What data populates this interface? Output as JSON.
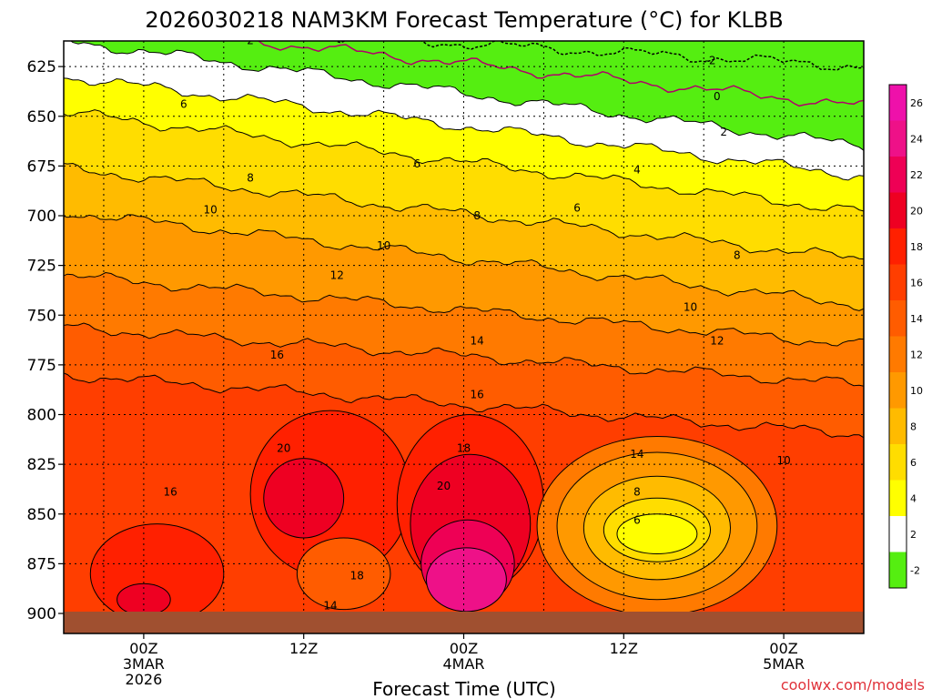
{
  "chart_data": {
    "type": "heatmap",
    "title": "2026030218 NAM3KM Forecast Temperature (°C) for KLBB",
    "xlabel": "Forecast Time (UTC)",
    "ylabel": "",
    "credit": "coolwx.com/models",
    "x_hours_range": [
      -6,
      54
    ],
    "ylim": [
      900,
      600
    ],
    "y_ticks": [
      625,
      650,
      675,
      700,
      725,
      750,
      775,
      800,
      825,
      850,
      875,
      900
    ],
    "x_ticks": [
      {
        "hour": 0,
        "label": "00Z",
        "date": "3MAR",
        "year": "2026"
      },
      {
        "hour": 12,
        "label": "12Z",
        "date": "",
        "year": ""
      },
      {
        "hour": 24,
        "label": "00Z",
        "date": "4MAR",
        "year": ""
      },
      {
        "hour": 36,
        "label": "12Z",
        "date": "",
        "year": ""
      },
      {
        "hour": 48,
        "label": "00Z",
        "date": "5MAR",
        "year": ""
      }
    ],
    "grid": true,
    "colorbar": {
      "levels": [
        -2,
        2,
        4,
        6,
        8,
        10,
        12,
        14,
        16,
        18,
        20,
        22,
        24,
        26
      ],
      "tick_labels": [
        "-2",
        "2",
        "4",
        "6",
        "8",
        "10",
        "12",
        "14",
        "16",
        "18",
        "20",
        "22",
        "24",
        "26"
      ],
      "colors": [
        "#55ee11",
        "#ffffff",
        "#ffff00",
        "#ffdd00",
        "#ffbb00",
        "#ff9900",
        "#ff7a00",
        "#ff5c00",
        "#ff3e00",
        "#ff2000",
        "#ee0022",
        "#ee0055",
        "#ee1188",
        "#ee11aa"
      ]
    },
    "isotherms": [
      {
        "value": -2,
        "p_left": 602,
        "p_right": 625
      },
      {
        "value": 0,
        "p_left": 602,
        "p_right": 645
      },
      {
        "value": 2,
        "p_left": 612,
        "p_right": 665
      },
      {
        "value": 4,
        "p_left": 630,
        "p_right": 680
      },
      {
        "value": 6,
        "p_left": 648,
        "p_right": 698
      },
      {
        "value": 8,
        "p_left": 676,
        "p_right": 722
      },
      {
        "value": 10,
        "p_left": 698,
        "p_right": 745
      },
      {
        "value": 12,
        "p_left": 730,
        "p_right": 765
      },
      {
        "value": 14,
        "p_left": 756,
        "p_right": 785
      },
      {
        "value": 16,
        "p_left": 780,
        "p_right": 810
      }
    ],
    "contour_labels": [
      {
        "text": "-2",
        "hour": 42.5,
        "p": 622
      },
      {
        "text": "2",
        "hour": 8,
        "p": 612
      },
      {
        "text": "0",
        "hour": 43,
        "p": 640
      },
      {
        "text": "6",
        "hour": 3,
        "p": 644
      },
      {
        "text": "2",
        "hour": 43.5,
        "p": 658
      },
      {
        "text": "6",
        "hour": 20.5,
        "p": 674
      },
      {
        "text": "4",
        "hour": 37,
        "p": 677
      },
      {
        "text": "8",
        "hour": 8,
        "p": 681
      },
      {
        "text": "10",
        "hour": 5,
        "p": 697
      },
      {
        "text": "6",
        "hour": 32.5,
        "p": 696
      },
      {
        "text": "8",
        "hour": 25,
        "p": 700
      },
      {
        "text": "10",
        "hour": 18,
        "p": 715
      },
      {
        "text": "12",
        "hour": 14.5,
        "p": 730
      },
      {
        "text": "8",
        "hour": 44.5,
        "p": 720
      },
      {
        "text": "10",
        "hour": 41,
        "p": 746
      },
      {
        "text": "14",
        "hour": 25,
        "p": 763
      },
      {
        "text": "12",
        "hour": 43,
        "p": 763
      },
      {
        "text": "16",
        "hour": 10,
        "p": 770
      },
      {
        "text": "16",
        "hour": 25,
        "p": 790
      },
      {
        "text": "18",
        "hour": 24,
        "p": 817
      },
      {
        "text": "20",
        "hour": 10.5,
        "p": 817
      },
      {
        "text": "14",
        "hour": 37,
        "p": 820
      },
      {
        "text": "10",
        "hour": 48,
        "p": 823
      },
      {
        "text": "16",
        "hour": 2,
        "p": 839
      },
      {
        "text": "20",
        "hour": 22.5,
        "p": 836
      },
      {
        "text": "8",
        "hour": 37,
        "p": 839
      },
      {
        "text": "6",
        "hour": 37,
        "p": 853
      },
      {
        "text": "18",
        "hour": 16,
        "p": 881
      },
      {
        "text": "14",
        "hour": 14,
        "p": 896
      }
    ],
    "blobs": [
      {
        "level": 18,
        "hour": 14,
        "p": 840,
        "hw": 6,
        "hp": 42
      },
      {
        "level": 18,
        "hour": 24.5,
        "p": 845,
        "hw": 5.5,
        "hp": 45
      },
      {
        "level": 18,
        "hour": 1,
        "p": 880,
        "hw": 5,
        "hp": 25
      },
      {
        "level": 20,
        "hour": 12,
        "p": 842,
        "hw": 3,
        "hp": 20
      },
      {
        "level": 20,
        "hour": 24.5,
        "p": 855,
        "hw": 4.5,
        "hp": 35
      },
      {
        "level": 22,
        "hour": 24.3,
        "p": 875,
        "hw": 3.5,
        "hp": 22
      },
      {
        "level": 24,
        "hour": 24.2,
        "p": 883,
        "hw": 3,
        "hp": 16
      },
      {
        "level": 20,
        "hour": 0,
        "p": 893,
        "hw": 2,
        "hp": 8
      },
      {
        "level": 14,
        "hour": 15,
        "p": 880,
        "hw": 3.5,
        "hp": 18
      },
      {
        "level": 12,
        "hour": 38.5,
        "p": 856,
        "hw": 9,
        "hp": 45
      },
      {
        "level": 10,
        "hour": 38.5,
        "p": 856,
        "hw": 7.5,
        "hp": 37
      },
      {
        "level": 8,
        "hour": 38.5,
        "p": 857,
        "hw": 5.5,
        "hp": 26
      },
      {
        "level": 6,
        "hour": 38.5,
        "p": 858,
        "hw": 4,
        "hp": 16
      },
      {
        "level": 4,
        "hour": 38.5,
        "p": 860,
        "hw": 3,
        "hp": 10
      }
    ]
  }
}
